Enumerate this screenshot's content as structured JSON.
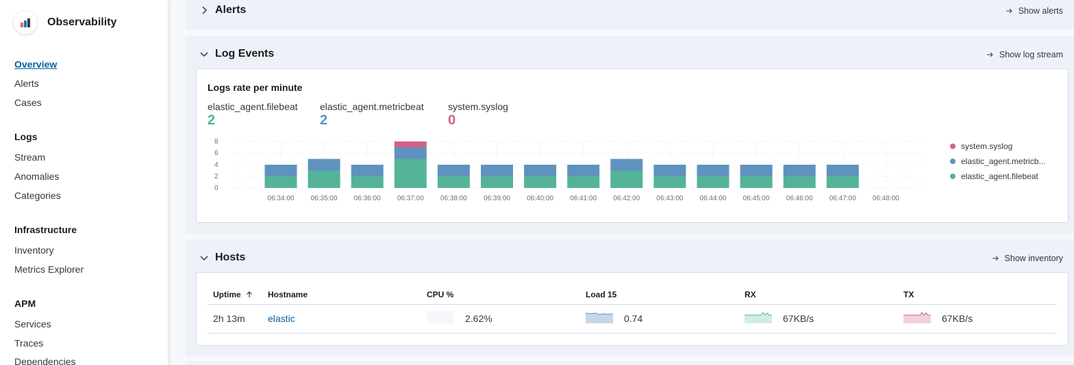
{
  "app": {
    "title": "Observability"
  },
  "nav": {
    "overview": "Overview",
    "alerts": "Alerts",
    "cases": "Cases",
    "logs_group": "Logs",
    "stream": "Stream",
    "anomalies": "Anomalies",
    "categories": "Categories",
    "infra_group": "Infrastructure",
    "inventory": "Inventory",
    "metrics_explorer": "Metrics Explorer",
    "apm_group": "APM",
    "services": "Services",
    "traces": "Traces",
    "dependencies": "Dependencies"
  },
  "alerts_panel": {
    "title": "Alerts",
    "link": "Show alerts"
  },
  "logs_panel": {
    "title": "Log Events",
    "link": "Show log stream",
    "chart_title": "Logs rate per minute",
    "stats": [
      {
        "label": "elastic_agent.filebeat",
        "value": "2",
        "color": "#54b399"
      },
      {
        "label": "elastic_agent.metricbeat",
        "value": "2",
        "color": "#6092c0"
      },
      {
        "label": "system.syslog",
        "value": "0",
        "color": "#d36086"
      }
    ],
    "legend": [
      {
        "label": "system.syslog",
        "color": "#d36086"
      },
      {
        "label": "elastic_agent.metricb...",
        "color": "#6092c0"
      },
      {
        "label": "elastic_agent.filebeat",
        "color": "#54b399"
      }
    ]
  },
  "chart_data": {
    "type": "bar",
    "stacked": true,
    "categories": [
      "06:34:00",
      "06:35:00",
      "06:36:00",
      "06:37:00",
      "06:38:00",
      "06:39:00",
      "06:40:00",
      "06:41:00",
      "06:42:00",
      "06:43:00",
      "06:44:00",
      "06:45:00",
      "06:46:00",
      "06:47:00",
      "06:48:00"
    ],
    "series": [
      {
        "name": "elastic_agent.filebeat",
        "color": "#54b399",
        "values": [
          2,
          3,
          2,
          5,
          2,
          2,
          2,
          2,
          3,
          2,
          2,
          2,
          2,
          2,
          0
        ]
      },
      {
        "name": "elastic_agent.metricbeat",
        "color": "#6092c0",
        "values": [
          2,
          2,
          2,
          2,
          2,
          2,
          2,
          2,
          2,
          2,
          2,
          2,
          2,
          2,
          0
        ]
      },
      {
        "name": "system.syslog",
        "color": "#d36086",
        "values": [
          0,
          0,
          0,
          1,
          0,
          0,
          0,
          0,
          0,
          0,
          0,
          0,
          0,
          0,
          0
        ]
      }
    ],
    "yticks": [
      "0",
      "2",
      "4",
      "6",
      "8"
    ],
    "ylim": [
      0,
      8
    ],
    "grid": true,
    "legend_position": "right"
  },
  "hosts_panel": {
    "title": "Hosts",
    "link": "Show inventory",
    "columns": [
      "Uptime",
      "Hostname",
      "CPU %",
      "Load 15",
      "RX",
      "TX"
    ],
    "sort_icon": "arrow-up-icon",
    "rows": [
      {
        "uptime": "2h 13m",
        "hostname": "elastic",
        "cpu": "2.62%",
        "load": "0.74",
        "rx": "67KB/s",
        "tx": "67KB/s"
      }
    ]
  }
}
